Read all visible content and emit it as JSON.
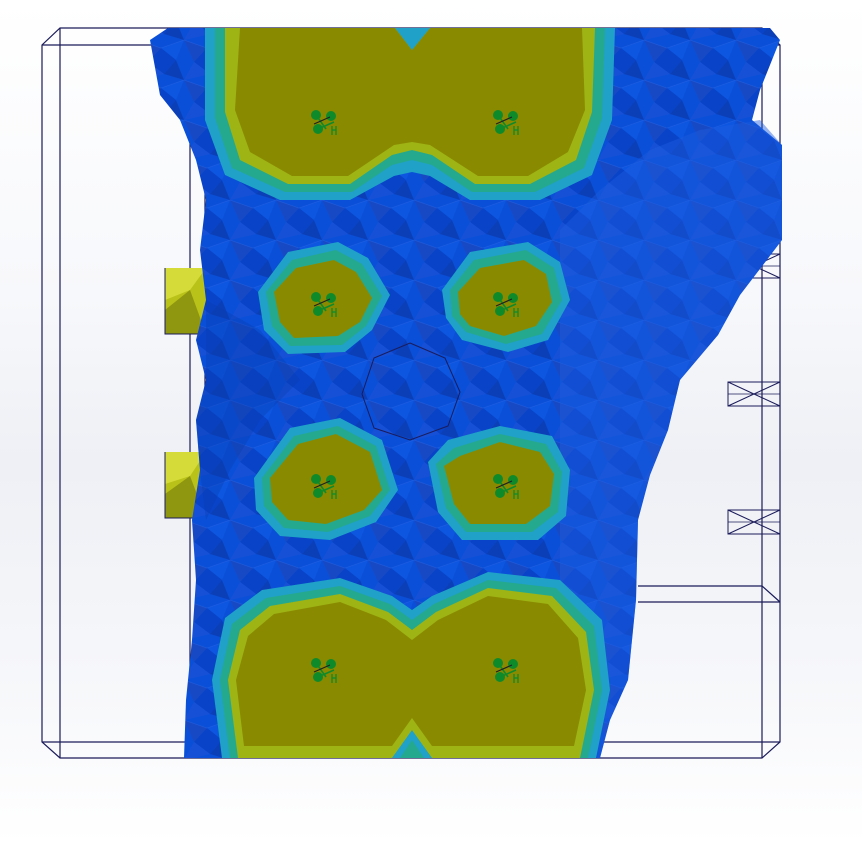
{
  "viewport": {
    "view": "simulation-contour-plot",
    "colors": {
      "mesh_dark": "#1446c0",
      "mesh": "#0a4fd8",
      "mesh_light": "#2d6ae6",
      "band_1": "#1fa1c8",
      "band_2": "#25a98e",
      "band_3": "#9db414",
      "core": "#8a8a00",
      "fixture": "#0f8a2a",
      "outline": "#1b1b5a",
      "step_block": "#b9c218"
    },
    "icons": {
      "fixture_glyph": "fixed-geometry-icon",
      "region_glyph": "cross-box-icon"
    }
  }
}
